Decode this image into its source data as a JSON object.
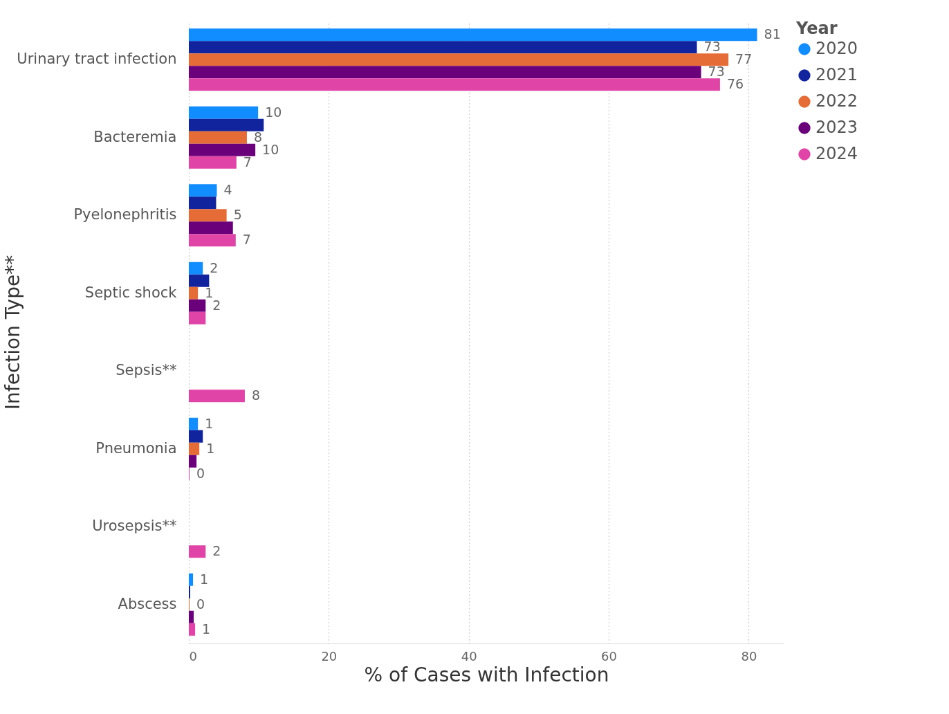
{
  "chart_data": {
    "type": "bar",
    "orientation": "horizontal",
    "xlabel": "% of Cases with Infection",
    "ylabel": "Infection Type**",
    "legend_title": "Year",
    "categories": [
      "Urinary tract infection",
      "Bacteremia",
      "Pyelonephritis",
      "Septic shock",
      "Sepsis**",
      "Pneumonia",
      "Urosepsis**",
      "Abscess"
    ],
    "series": [
      {
        "name": "2020",
        "color": "#118dff",
        "values": [
          81.2,
          9.9,
          4.0,
          2.0,
          null,
          1.3,
          null,
          0.6
        ],
        "value_labels": [
          "81",
          "10",
          "4",
          "2",
          null,
          "1",
          null,
          "1"
        ]
      },
      {
        "name": "2021",
        "color": "#12239e",
        "values": [
          72.6,
          10.7,
          3.9,
          2.9,
          null,
          2.0,
          null,
          0.2
        ],
        "value_labels": [
          "73",
          null,
          null,
          null,
          null,
          null,
          null,
          null
        ]
      },
      {
        "name": "2022",
        "color": "#e66c37",
        "values": [
          77.1,
          8.3,
          5.4,
          1.3,
          null,
          1.5,
          null,
          0.1
        ],
        "value_labels": [
          "77",
          "8",
          "5",
          "1",
          null,
          "1",
          null,
          "0"
        ]
      },
      {
        "name": "2023",
        "color": "#6b007b",
        "values": [
          73.2,
          9.5,
          6.3,
          2.4,
          null,
          1.1,
          null,
          0.7
        ],
        "value_labels": [
          "73",
          "10",
          null,
          "2",
          null,
          null,
          null,
          null
        ]
      },
      {
        "name": "2024",
        "color": "#e044a7",
        "values": [
          75.9,
          6.8,
          6.7,
          2.4,
          8.0,
          0.1,
          2.4,
          0.9
        ],
        "value_labels": [
          "76",
          "7",
          "7",
          null,
          "8",
          "0",
          "2",
          "1"
        ]
      }
    ],
    "xlim": [
      0,
      85
    ],
    "xticks": [
      0,
      20,
      40,
      60,
      80
    ],
    "grid": "x",
    "legend": "right"
  }
}
